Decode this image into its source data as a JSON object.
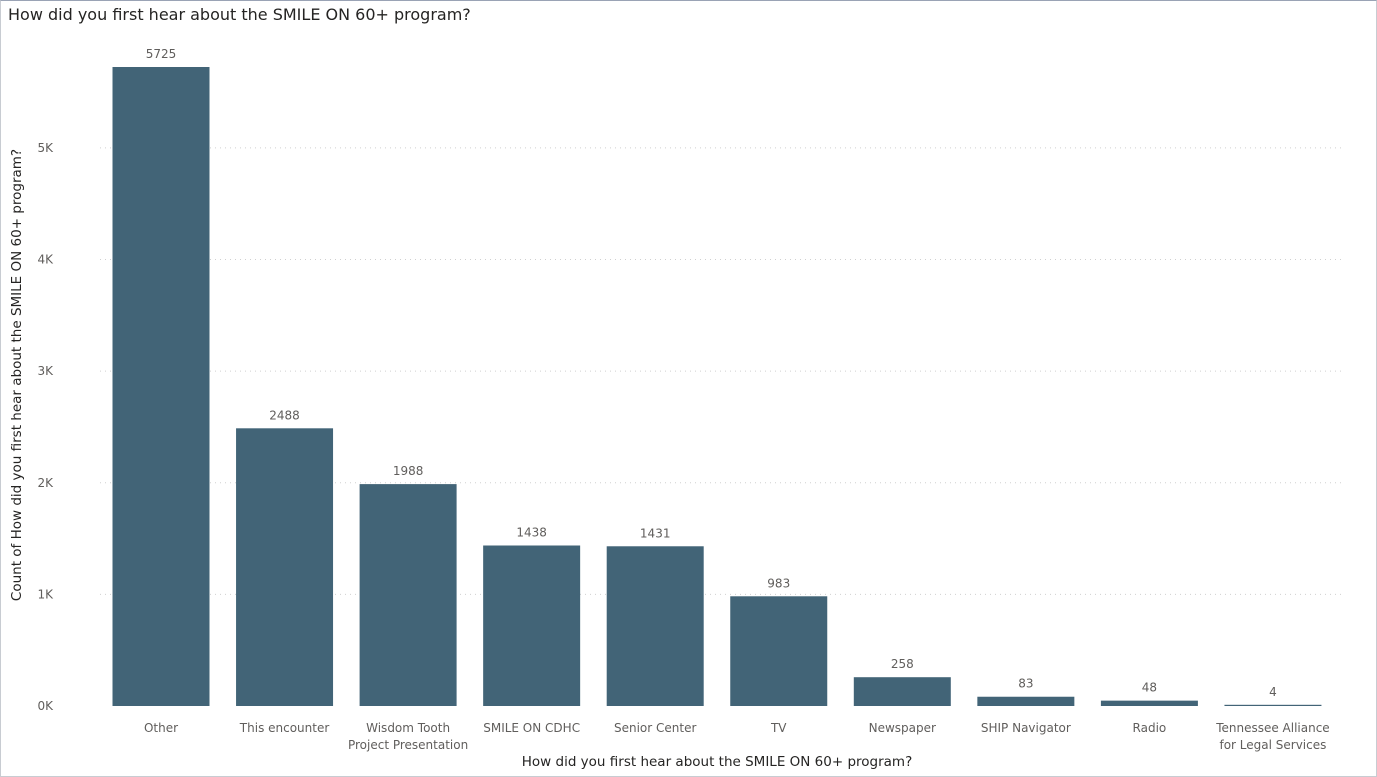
{
  "chart_data": {
    "type": "bar",
    "title": "How did you first hear about the SMILE ON 60+ program?",
    "xlabel": "How did you first hear about the SMILE ON 60+ program?",
    "ylabel": "Count of How did you first hear about the SMILE ON 60+ program?",
    "categories": [
      [
        "Other"
      ],
      [
        "This encounter"
      ],
      [
        "Wisdom Tooth",
        "Project Presentation"
      ],
      [
        "SMILE ON CDHC"
      ],
      [
        "Senior Center"
      ],
      [
        "TV"
      ],
      [
        "Newspaper"
      ],
      [
        "SHIP Navigator"
      ],
      [
        "Radio"
      ],
      [
        "Tennessee Alliance",
        "for Legal Services"
      ]
    ],
    "values": [
      5725,
      2488,
      1988,
      1438,
      1431,
      983,
      258,
      83,
      48,
      4
    ],
    "data_labels": [
      "5725",
      "2488",
      "1988",
      "1438",
      "1431",
      "983",
      "258",
      "83",
      "48",
      "4"
    ],
    "yticks": [
      {
        "value": 0,
        "label": "0K"
      },
      {
        "value": 1000,
        "label": "1K"
      },
      {
        "value": 2000,
        "label": "2K"
      },
      {
        "value": 3000,
        "label": "3K"
      },
      {
        "value": 4000,
        "label": "4K"
      },
      {
        "value": 5000,
        "label": "5K"
      }
    ],
    "ylim": [
      0,
      5725
    ],
    "grid": true,
    "colors": {
      "bar": "#426477",
      "grid": "#d0d0d0",
      "text": "#605e5c"
    }
  }
}
